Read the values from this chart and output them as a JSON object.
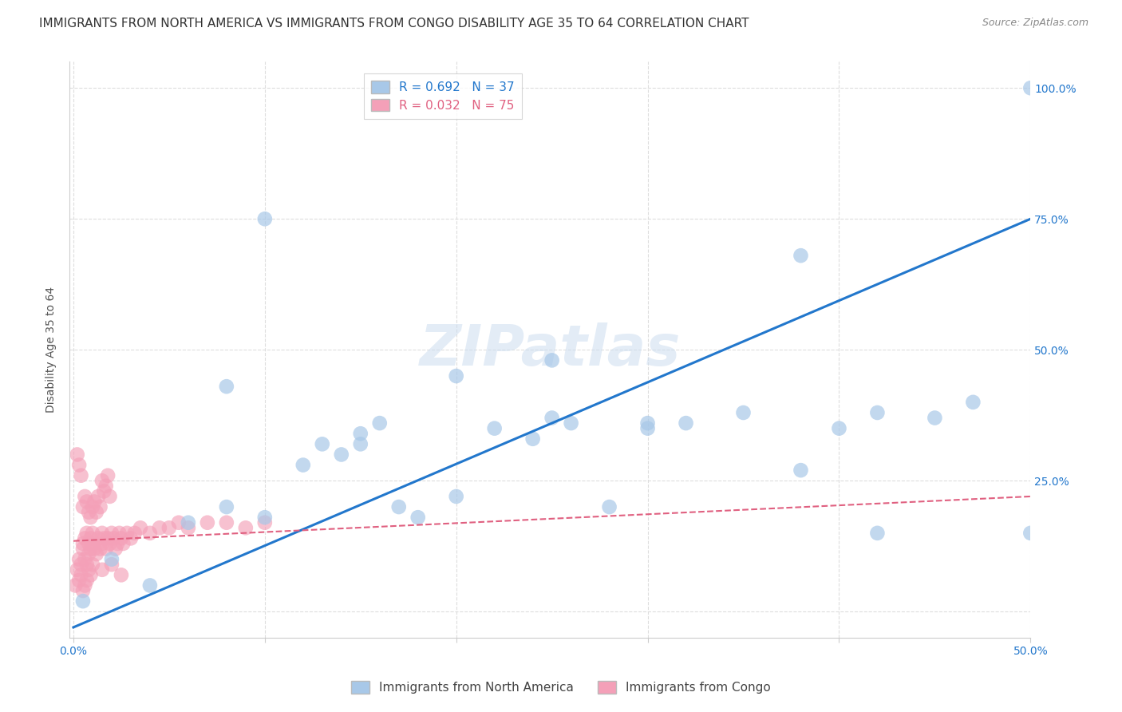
{
  "title": "IMMIGRANTS FROM NORTH AMERICA VS IMMIGRANTS FROM CONGO DISABILITY AGE 35 TO 64 CORRELATION CHART",
  "source": "Source: ZipAtlas.com",
  "xlabel_label": "Immigrants from North America",
  "ylabel_label": "Disability Age 35 to 64",
  "x_min": 0.0,
  "x_max": 0.5,
  "y_min": -0.05,
  "y_max": 1.05,
  "north_america_R": 0.692,
  "north_america_N": 37,
  "congo_R": 0.032,
  "congo_N": 75,
  "north_america_color": "#a8c8e8",
  "north_america_line_color": "#2277cc",
  "congo_color": "#f4a0b8",
  "congo_line_color": "#e06080",
  "na_trend_x0": 0.0,
  "na_trend_y0": -0.03,
  "na_trend_x1": 0.5,
  "na_trend_y1": 0.75,
  "cg_trend_x0": 0.0,
  "cg_trend_y0": 0.135,
  "cg_trend_x1": 0.5,
  "cg_trend_y1": 0.22,
  "north_america_x": [
    0.005,
    0.02,
    0.04,
    0.06,
    0.08,
    0.1,
    0.12,
    0.13,
    0.14,
    0.15,
    0.16,
    0.17,
    0.18,
    0.2,
    0.22,
    0.24,
    0.25,
    0.26,
    0.28,
    0.3,
    0.32,
    0.35,
    0.38,
    0.4,
    0.42,
    0.45,
    0.47,
    0.5,
    0.1,
    0.38,
    0.08,
    0.25,
    0.5,
    0.42,
    0.3,
    0.2,
    0.15
  ],
  "north_america_y": [
    0.02,
    0.1,
    0.05,
    0.17,
    0.2,
    0.18,
    0.28,
    0.32,
    0.3,
    0.34,
    0.36,
    0.2,
    0.18,
    0.22,
    0.35,
    0.33,
    0.37,
    0.36,
    0.2,
    0.36,
    0.36,
    0.38,
    0.27,
    0.35,
    0.38,
    0.37,
    0.4,
    1.0,
    0.75,
    0.68,
    0.43,
    0.48,
    0.15,
    0.15,
    0.35,
    0.45,
    0.32
  ],
  "congo_x": [
    0.001,
    0.002,
    0.003,
    0.004,
    0.005,
    0.005,
    0.006,
    0.006,
    0.007,
    0.007,
    0.008,
    0.008,
    0.009,
    0.009,
    0.01,
    0.01,
    0.011,
    0.012,
    0.013,
    0.014,
    0.015,
    0.015,
    0.016,
    0.017,
    0.018,
    0.019,
    0.02,
    0.021,
    0.022,
    0.023,
    0.024,
    0.025,
    0.026,
    0.028,
    0.03,
    0.032,
    0.035,
    0.04,
    0.045,
    0.05,
    0.055,
    0.06,
    0.07,
    0.08,
    0.09,
    0.1,
    0.005,
    0.006,
    0.007,
    0.008,
    0.009,
    0.01,
    0.011,
    0.012,
    0.013,
    0.014,
    0.015,
    0.016,
    0.017,
    0.018,
    0.019,
    0.003,
    0.004,
    0.005,
    0.006,
    0.007,
    0.008,
    0.009,
    0.01,
    0.015,
    0.02,
    0.025,
    0.002,
    0.003,
    0.004
  ],
  "congo_y": [
    0.05,
    0.08,
    0.1,
    0.09,
    0.12,
    0.13,
    0.14,
    0.1,
    0.09,
    0.15,
    0.11,
    0.13,
    0.12,
    0.14,
    0.13,
    0.15,
    0.12,
    0.11,
    0.14,
    0.12,
    0.13,
    0.15,
    0.14,
    0.12,
    0.14,
    0.13,
    0.15,
    0.14,
    0.12,
    0.13,
    0.15,
    0.14,
    0.13,
    0.15,
    0.14,
    0.15,
    0.16,
    0.15,
    0.16,
    0.16,
    0.17,
    0.16,
    0.17,
    0.17,
    0.16,
    0.17,
    0.2,
    0.22,
    0.21,
    0.19,
    0.18,
    0.2,
    0.21,
    0.19,
    0.22,
    0.2,
    0.25,
    0.23,
    0.24,
    0.26,
    0.22,
    0.06,
    0.07,
    0.04,
    0.05,
    0.06,
    0.08,
    0.07,
    0.09,
    0.08,
    0.09,
    0.07,
    0.3,
    0.28,
    0.26
  ],
  "watermark_text": "ZIPatlas",
  "background_color": "#ffffff",
  "grid_color": "#dddddd",
  "title_fontsize": 11,
  "axis_label_fontsize": 10,
  "tick_fontsize": 10,
  "legend_fontsize": 11
}
